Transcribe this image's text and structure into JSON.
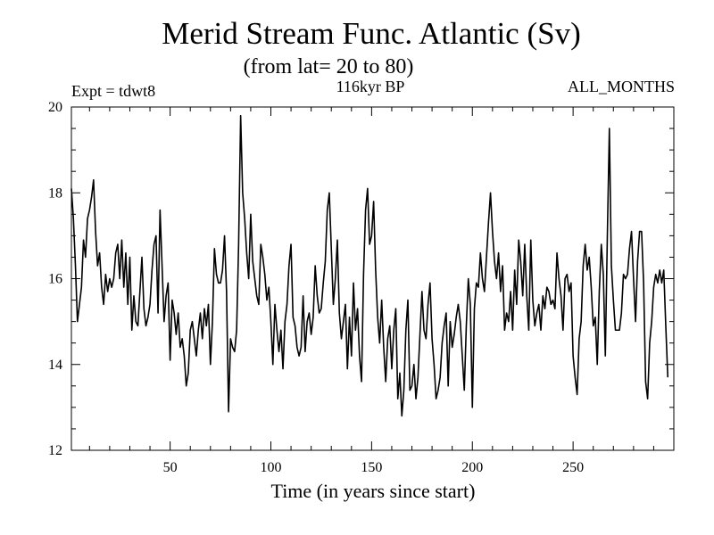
{
  "chart_data": {
    "type": "line",
    "title": "Merid Stream Func. Atlantic (Sv)",
    "subtitle": "(from lat= 20 to 80)",
    "left_label": "Expt = tdwt8",
    "center_label": "116kyr BP",
    "right_label": "ALL_MONTHS",
    "xlabel": "Time (in years since start)",
    "ylabel": "",
    "xlim": [
      1,
      300
    ],
    "ylim": [
      12,
      20
    ],
    "x_ticks": [
      50,
      100,
      150,
      200,
      250
    ],
    "x_tick_labels": [
      "50",
      "100",
      "150",
      "200",
      "250"
    ],
    "y_ticks": [
      12,
      14,
      16,
      18,
      20
    ],
    "y_tick_labels": [
      "12",
      "14",
      "16",
      "18",
      "20"
    ],
    "x_minor_step": 10,
    "y_minor_step": 0.5,
    "grid": false,
    "series": [
      {
        "name": "Merid Stream Func. Atlantic",
        "x_start": 1,
        "x_step": 1,
        "values": [
          18.1,
          17.4,
          16.3,
          15.0,
          15.4,
          15.8,
          16.9,
          16.5,
          17.4,
          17.6,
          17.9,
          18.3,
          17.1,
          16.3,
          16.6,
          15.8,
          15.4,
          16.1,
          15.7,
          16.0,
          15.8,
          16.0,
          16.6,
          16.8,
          16.0,
          16.9,
          15.8,
          16.6,
          15.4,
          16.5,
          14.8,
          15.6,
          15.0,
          14.9,
          15.7,
          16.5,
          15.3,
          14.9,
          15.1,
          15.4,
          16.2,
          16.8,
          17.0,
          15.2,
          17.6,
          16.3,
          15.0,
          15.6,
          15.9,
          14.1,
          15.5,
          15.2,
          14.7,
          15.2,
          14.4,
          14.6,
          14.2,
          13.5,
          13.8,
          14.8,
          15.0,
          14.6,
          14.2,
          14.8,
          15.2,
          14.6,
          15.3,
          14.9,
          15.4,
          14.0,
          15.0,
          16.7,
          16.1,
          15.9,
          15.9,
          16.2,
          17.0,
          15.7,
          12.9,
          14.6,
          14.4,
          14.3,
          14.8,
          16.8,
          19.8,
          18.0,
          17.4,
          16.6,
          16.0,
          17.5,
          16.4,
          16.0,
          15.6,
          15.4,
          16.8,
          16.5,
          16.1,
          15.5,
          15.8,
          15.0,
          14.0,
          15.4,
          14.8,
          14.3,
          14.8,
          13.9,
          15.0,
          15.4,
          16.3,
          16.8,
          15.1,
          14.9,
          14.4,
          14.2,
          14.4,
          15.6,
          14.3,
          15.0,
          15.2,
          14.7,
          15.1,
          16.3,
          15.6,
          15.2,
          15.3,
          15.9,
          16.4,
          17.6,
          18.0,
          16.7,
          15.4,
          16.0,
          16.9,
          15.2,
          14.6,
          15.0,
          15.4,
          13.9,
          15.1,
          14.2,
          15.9,
          14.8,
          15.3,
          14.2,
          13.6,
          16.1,
          17.6,
          18.1,
          16.8,
          17.0,
          17.8,
          16.2,
          15.1,
          14.5,
          15.5,
          14.4,
          13.6,
          14.6,
          14.9,
          13.9,
          14.8,
          15.3,
          13.2,
          13.8,
          12.8,
          13.4,
          14.8,
          15.5,
          13.4,
          13.5,
          14.0,
          13.2,
          13.7,
          14.7,
          15.7,
          14.8,
          14.6,
          15.4,
          15.9,
          14.6,
          14.0,
          13.2,
          13.4,
          13.7,
          14.5,
          14.9,
          15.2,
          13.5,
          15.0,
          14.4,
          14.7,
          15.1,
          15.4,
          15.0,
          14.2,
          13.4,
          14.9,
          16.0,
          15.4,
          13.0,
          15.3,
          15.9,
          15.8,
          16.6,
          16.0,
          15.7,
          16.5,
          17.3,
          18.0,
          17.1,
          16.4,
          16.0,
          16.6,
          15.7,
          16.3,
          14.8,
          15.2,
          15.0,
          15.7,
          14.8,
          16.2,
          15.4,
          16.9,
          16.4,
          15.6,
          16.8,
          15.6,
          14.8,
          16.9,
          15.5,
          14.9,
          15.2,
          15.4,
          14.8,
          15.6,
          15.3,
          15.8,
          15.7,
          15.4,
          15.5,
          15.3,
          16.6,
          16.0,
          15.6,
          14.8,
          16.0,
          16.1,
          15.7,
          15.9,
          14.2,
          13.7,
          13.3,
          14.6,
          15.0,
          16.3,
          16.8,
          16.2,
          16.5,
          15.8,
          14.9,
          15.1,
          14.0,
          15.7,
          16.8,
          16.1,
          14.2,
          17.0,
          19.5,
          16.3,
          15.5,
          14.8,
          14.8,
          14.8,
          15.2,
          16.1,
          16.0,
          16.1,
          16.7,
          17.1,
          16.0,
          15.0,
          16.4,
          17.1,
          17.1,
          15.9,
          13.6,
          13.2,
          14.5,
          15.0,
          15.8,
          16.1,
          15.9,
          16.2,
          15.9,
          16.2,
          14.9,
          13.7
        ]
      }
    ]
  }
}
